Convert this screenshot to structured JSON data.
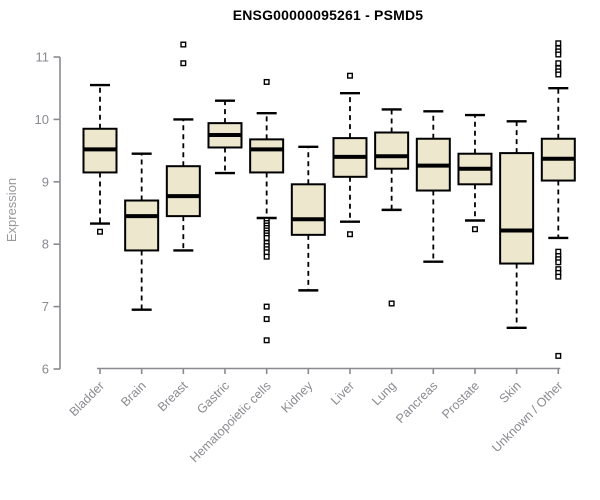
{
  "chart_data": {
    "type": "boxplot",
    "title": "ENSG00000095261 - PSMD5",
    "xlabel": "",
    "ylabel": "Expression",
    "ylim": [
      6,
      11
    ],
    "yticks": [
      6,
      7,
      8,
      9,
      10,
      11
    ],
    "grid": false,
    "legend": "none",
    "colors": {
      "box_fill": "#ece7cd",
      "box_stroke": "#000000",
      "median": "#000000",
      "whisker": "#000000",
      "outlier_fill": "#ffffff",
      "axis": "#8a8a90",
      "tick_label": "#8a8a90",
      "axis_label": "#97979c",
      "title": "#000000",
      "background": "#ffffff"
    },
    "categories": [
      "Bladder",
      "Brain",
      "Breast",
      "Gastric",
      "Hematopoietic cells",
      "Kidney",
      "Liver",
      "Lung",
      "Pancreas",
      "Prostate",
      "Skin",
      "Unknown / Other"
    ],
    "series": [
      {
        "category": "Bladder",
        "whisker_low": 8.33,
        "q1": 9.15,
        "median": 9.52,
        "q3": 9.85,
        "whisker_high": 10.55,
        "outliers": [
          8.2
        ]
      },
      {
        "category": "Brain",
        "whisker_low": 6.95,
        "q1": 7.9,
        "median": 8.45,
        "q3": 8.7,
        "whisker_high": 9.45,
        "outliers": []
      },
      {
        "category": "Breast",
        "whisker_low": 7.9,
        "q1": 8.45,
        "median": 8.77,
        "q3": 9.25,
        "whisker_high": 10.0,
        "outliers": [
          11.2,
          10.9
        ]
      },
      {
        "category": "Gastric",
        "whisker_low": 9.14,
        "q1": 9.55,
        "median": 9.75,
        "q3": 9.94,
        "whisker_high": 10.3,
        "outliers": []
      },
      {
        "category": "Hematopoietic cells",
        "whisker_low": 8.42,
        "q1": 9.15,
        "median": 9.52,
        "q3": 9.68,
        "whisker_high": 10.1,
        "outliers": [
          10.6,
          8.38,
          8.34,
          8.3,
          8.26,
          8.22,
          8.18,
          8.14,
          8.1,
          8.02,
          7.97,
          7.92,
          7.87,
          7.8,
          7.0,
          6.8,
          6.46
        ]
      },
      {
        "category": "Kidney",
        "whisker_low": 7.26,
        "q1": 8.15,
        "median": 8.4,
        "q3": 8.96,
        "whisker_high": 9.56,
        "outliers": []
      },
      {
        "category": "Liver",
        "whisker_low": 8.36,
        "q1": 9.08,
        "median": 9.4,
        "q3": 9.7,
        "whisker_high": 10.42,
        "outliers": [
          10.7,
          8.16
        ]
      },
      {
        "category": "Lung",
        "whisker_low": 8.55,
        "q1": 9.21,
        "median": 9.41,
        "q3": 9.79,
        "whisker_high": 10.16,
        "outliers": [
          7.05
        ]
      },
      {
        "category": "Pancreas",
        "whisker_low": 7.72,
        "q1": 8.86,
        "median": 9.26,
        "q3": 9.69,
        "whisker_high": 10.13,
        "outliers": []
      },
      {
        "category": "Prostate",
        "whisker_low": 8.38,
        "q1": 8.96,
        "median": 9.21,
        "q3": 9.45,
        "whisker_high": 10.07,
        "outliers": [
          8.24
        ]
      },
      {
        "category": "Skin",
        "whisker_low": 6.66,
        "q1": 7.69,
        "median": 8.22,
        "q3": 9.46,
        "whisker_high": 9.97,
        "outliers": []
      },
      {
        "category": "Unknown / Other",
        "whisker_low": 8.1,
        "q1": 9.02,
        "median": 9.37,
        "q3": 9.69,
        "whisker_high": 10.5,
        "outliers": [
          11.22,
          11.14,
          11.09,
          11.04,
          10.9,
          10.82,
          10.77,
          10.72,
          7.88,
          7.81,
          7.76,
          7.71,
          7.6,
          7.54,
          7.48,
          6.21
        ]
      }
    ]
  }
}
